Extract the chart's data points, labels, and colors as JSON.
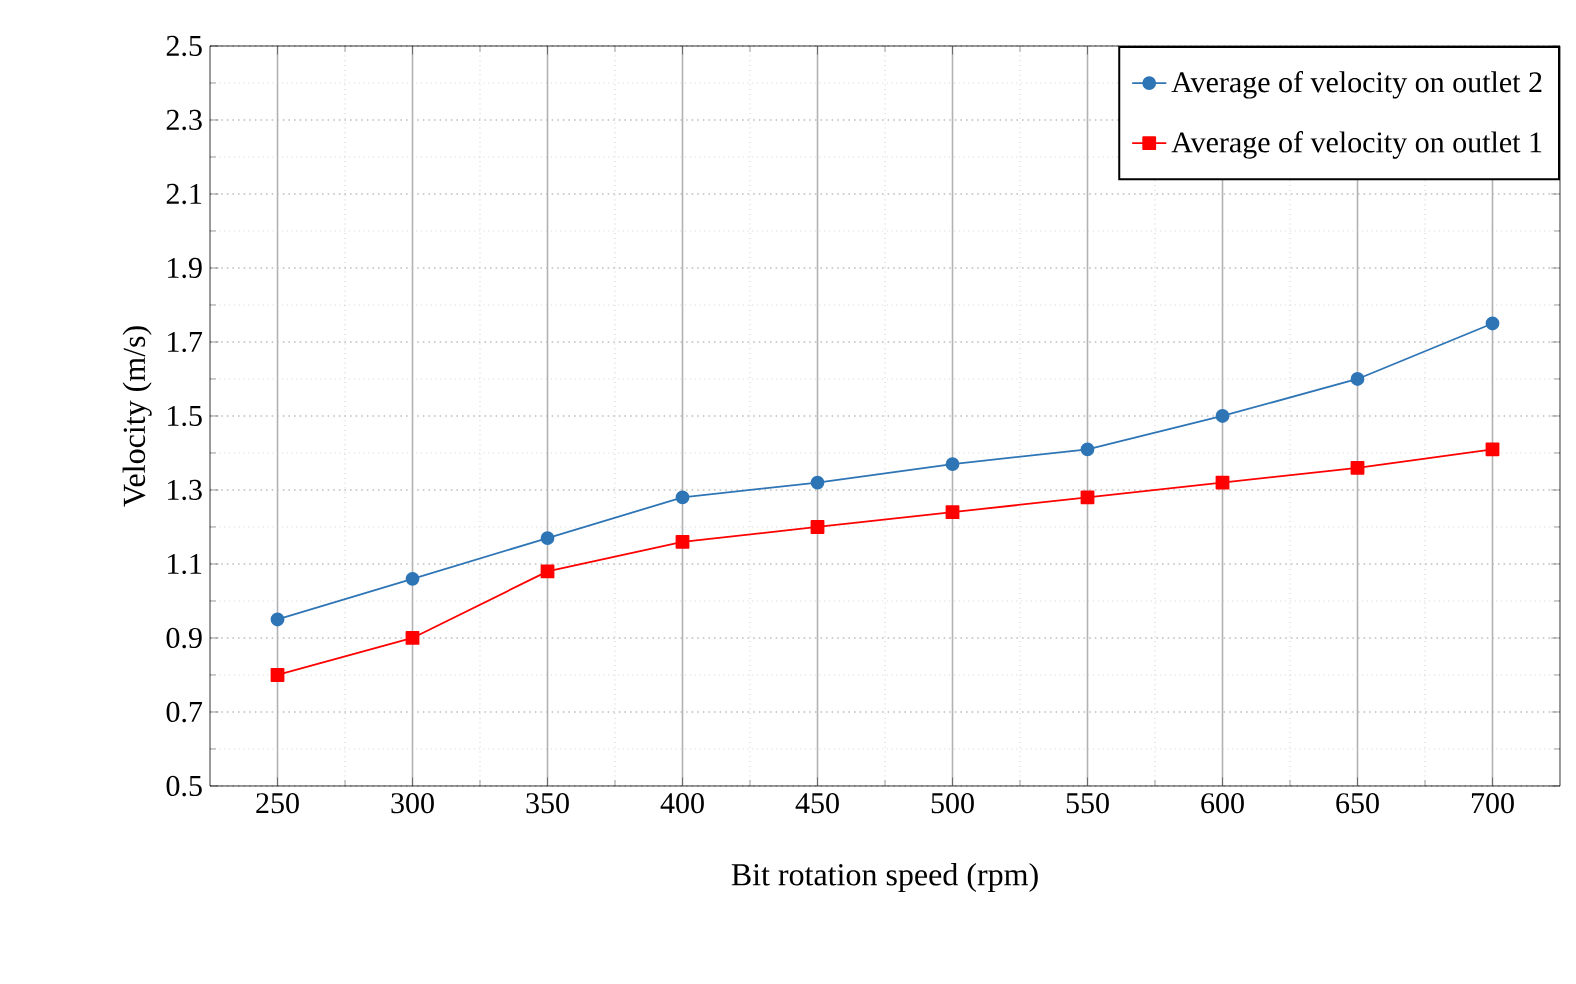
{
  "chart_data": {
    "type": "line",
    "xlabel": "Bit rotation speed (rpm)",
    "ylabel": "Velocity (m/s)",
    "categories": [
      "250",
      "300",
      "350",
      "400",
      "450",
      "500",
      "550",
      "600",
      "650",
      "700"
    ],
    "series": [
      {
        "name": "Average of velocity on outlet 2",
        "color": "#2e75b6",
        "marker": "circle",
        "values": [
          0.95,
          1.06,
          1.17,
          1.28,
          1.32,
          1.37,
          1.41,
          1.5,
          1.6,
          1.75
        ]
      },
      {
        "name": "Average of velocity on outlet 1",
        "color": "#ff0000",
        "marker": "square",
        "values": [
          0.8,
          0.9,
          1.08,
          1.16,
          1.2,
          1.24,
          1.28,
          1.32,
          1.36,
          1.41
        ]
      }
    ],
    "ylim": [
      0.5,
      2.5
    ],
    "yticks": [
      0.5,
      0.7,
      0.9,
      1.1,
      1.3,
      1.5,
      1.7,
      1.9,
      2.1,
      2.3,
      2.5
    ],
    "grid": true,
    "legend": "top right",
    "line_style": "solid"
  }
}
